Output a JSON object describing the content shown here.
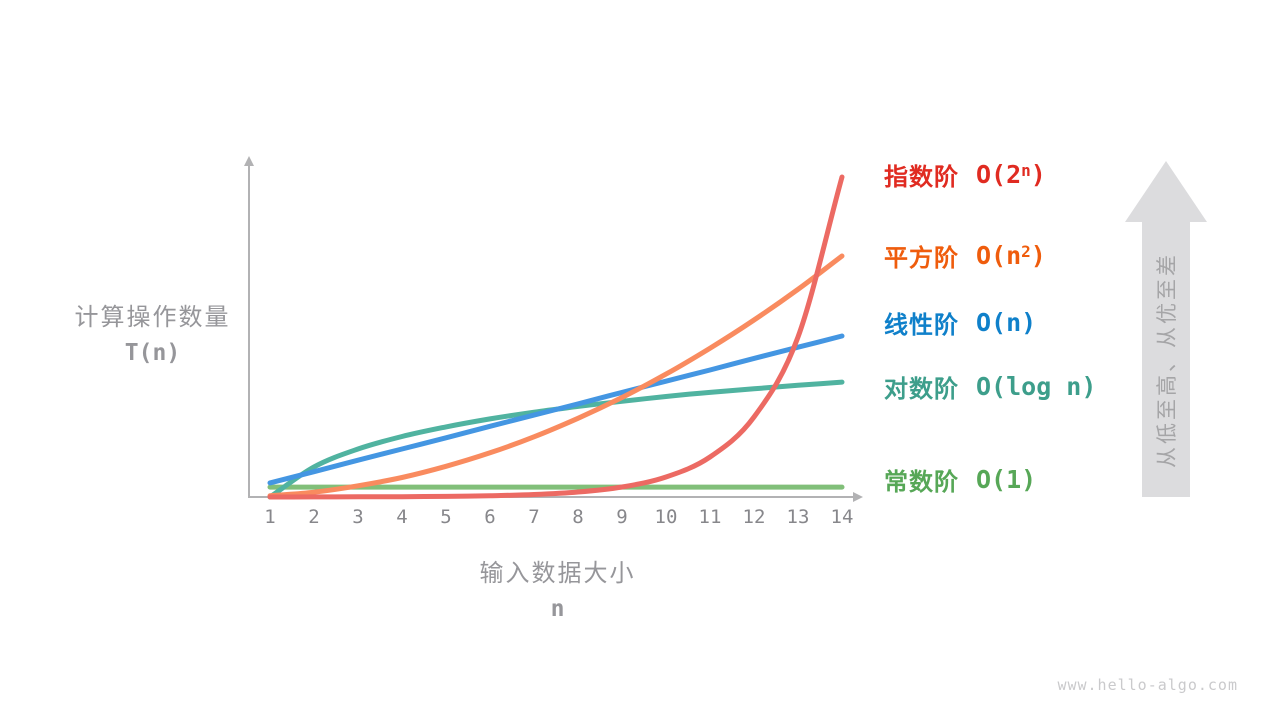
{
  "axes": {
    "y_label_zh": "计算操作数量",
    "y_label_symbol": "T(n)",
    "x_label_zh": "输入数据大小",
    "x_label_symbol": "n",
    "axis_color": "#b2b2b4",
    "tick_color": "#87878b",
    "label_color": "#96969a"
  },
  "legend": {
    "items": [
      {
        "key": "exponential",
        "label": "指数阶",
        "formula_pre": "O(2",
        "formula_sup": "n",
        "formula_post": ")",
        "color": "#e02b21"
      },
      {
        "key": "quadratic",
        "label": "平方阶",
        "formula_pre": "O(n",
        "formula_sup": "2",
        "formula_post": ")",
        "color": "#ef5c0c"
      },
      {
        "key": "linear",
        "label": "线性阶",
        "formula_pre": "O(n)",
        "formula_sup": "",
        "formula_post": "",
        "color": "#0f80ca"
      },
      {
        "key": "logarithmic",
        "label": "对数阶",
        "formula_pre": "O(log n)",
        "formula_sup": "",
        "formula_post": "",
        "color": "#3d9e8b"
      },
      {
        "key": "constant",
        "label": "常数阶",
        "formula_pre": "O(1)",
        "formula_sup": "",
        "formula_post": "",
        "color": "#57a757"
      }
    ]
  },
  "direction_arrow": {
    "text": "从低至高、从优至差",
    "fill": "#dcdcde",
    "text_color": "#a5a5a7"
  },
  "watermark": {
    "text": "www.hello-algo.com",
    "color": "#cacacc"
  },
  "chart_data": {
    "type": "line",
    "x": [
      1,
      2,
      3,
      4,
      5,
      6,
      7,
      8,
      9,
      10,
      11,
      12,
      13,
      14
    ],
    "xlabel": "输入数据大小 n",
    "ylabel": "计算操作数量 T(n)",
    "y_axis_scale": "schematic, no numeric ticks; values below are percent of plot height above the x-axis",
    "grid": false,
    "legend_position": "right",
    "series": [
      {
        "key": "constant",
        "name": "常数阶 O(1)",
        "color": "#81bf79",
        "values": [
          3.1,
          3.1,
          3.1,
          3.1,
          3.1,
          3.1,
          3.1,
          3.1,
          3.1,
          3.1,
          3.1,
          3.1,
          3.1,
          3.1
        ]
      },
      {
        "key": "logarithmic",
        "name": "对数阶 O(log n)",
        "color": "#50b3a0",
        "values": [
          0,
          9.4,
          15.0,
          18.9,
          21.9,
          24.4,
          26.5,
          28.3,
          29.9,
          31.4,
          32.7,
          33.8,
          34.9,
          35.9
        ]
      },
      {
        "key": "linear",
        "name": "线性阶 O(n)",
        "color": "#4496e2",
        "values": [
          4.4,
          7.9,
          11.5,
          15.0,
          18.5,
          22.1,
          25.6,
          29.1,
          32.7,
          36.2,
          39.7,
          43.3,
          46.8,
          50.3
        ]
      },
      {
        "key": "quadratic",
        "name": "平方阶 O(n²)",
        "color": "#f98b5f",
        "values": [
          0.4,
          1.5,
          3.5,
          6.1,
          9.6,
          13.8,
          18.8,
          24.6,
          31.1,
          38.4,
          46.5,
          55.3,
          64.9,
          75.3
        ]
      },
      {
        "key": "exponential",
        "name": "指数阶 O(2ⁿ)",
        "color": "#ec6a63",
        "values": [
          0.01,
          0.02,
          0.05,
          0.1,
          0.2,
          0.39,
          0.78,
          1.56,
          3.13,
          6.25,
          12.5,
          25,
          50,
          100
        ]
      }
    ]
  }
}
